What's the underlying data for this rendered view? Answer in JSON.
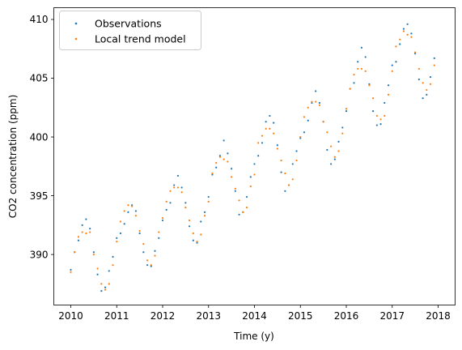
{
  "chart_data": {
    "type": "scatter",
    "xlabel": "Time (y)",
    "ylabel": "CO2 concentration (ppm)",
    "xlim": [
      2009.63,
      2018.37
    ],
    "ylim": [
      385.7,
      411.0
    ],
    "xticks": [
      2010,
      2011,
      2012,
      2013,
      2014,
      2015,
      2016,
      2017,
      2018
    ],
    "yticks": [
      390,
      395,
      400,
      405,
      410
    ],
    "grid": false,
    "legend_position": "top-left",
    "series": [
      {
        "name": "Observations",
        "color": "#1f77b4",
        "x": [
          2010.0,
          2010.083,
          2010.167,
          2010.25,
          2010.333,
          2010.417,
          2010.5,
          2010.583,
          2010.667,
          2010.75,
          2010.833,
          2010.917,
          2011.0,
          2011.083,
          2011.167,
          2011.25,
          2011.333,
          2011.417,
          2011.5,
          2011.583,
          2011.667,
          2011.75,
          2011.833,
          2011.917,
          2012.0,
          2012.083,
          2012.167,
          2012.25,
          2012.333,
          2012.417,
          2012.5,
          2012.583,
          2012.667,
          2012.75,
          2012.833,
          2012.917,
          2013.0,
          2013.083,
          2013.167,
          2013.25,
          2013.333,
          2013.417,
          2013.5,
          2013.583,
          2013.667,
          2013.75,
          2013.833,
          2013.917,
          2014.0,
          2014.083,
          2014.167,
          2014.25,
          2014.333,
          2014.417,
          2014.5,
          2014.583,
          2014.667,
          2014.75,
          2014.833,
          2014.917,
          2015.0,
          2015.083,
          2015.167,
          2015.25,
          2015.333,
          2015.417,
          2015.5,
          2015.583,
          2015.667,
          2015.75,
          2015.833,
          2015.917,
          2016.0,
          2016.083,
          2016.167,
          2016.25,
          2016.333,
          2016.417,
          2016.5,
          2016.583,
          2016.667,
          2016.75,
          2016.833,
          2016.917,
          2017.0,
          2017.083,
          2017.167,
          2017.25,
          2017.333,
          2017.417,
          2017.5,
          2017.583,
          2017.667,
          2017.75,
          2017.833,
          2017.917
        ],
        "values": [
          388.7,
          390.2,
          391.2,
          392.5,
          393.0,
          392.2,
          390.2,
          388.3,
          386.9,
          387.2,
          388.6,
          389.8,
          391.4,
          391.8,
          392.6,
          393.6,
          394.2,
          393.7,
          391.8,
          390.2,
          389.1,
          389.0,
          390.3,
          391.4,
          392.9,
          393.8,
          394.4,
          395.9,
          396.7,
          395.7,
          394.4,
          392.4,
          391.2,
          391.0,
          392.8,
          393.6,
          394.9,
          396.8,
          397.4,
          398.4,
          399.7,
          398.6,
          397.3,
          395.4,
          393.4,
          393.6,
          394.9,
          396.6,
          397.7,
          398.4,
          399.5,
          401.3,
          401.8,
          401.2,
          399.3,
          397.0,
          395.4,
          395.9,
          397.7,
          398.8,
          399.9,
          400.4,
          401.4,
          402.9,
          403.9,
          402.9,
          401.3,
          398.9,
          397.7,
          398.1,
          399.6,
          400.8,
          402.2,
          404.1,
          404.6,
          406.4,
          407.6,
          406.8,
          404.5,
          402.2,
          401.0,
          401.1,
          402.9,
          404.4,
          406.1,
          406.4,
          407.9,
          409.2,
          409.6,
          408.8,
          407.1,
          404.9,
          403.3,
          403.6,
          405.1,
          406.7
        ]
      },
      {
        "name": "Local trend model",
        "color": "#ff7f0e",
        "x": [
          2010.0,
          2010.083,
          2010.167,
          2010.25,
          2010.333,
          2010.417,
          2010.5,
          2010.583,
          2010.667,
          2010.75,
          2010.833,
          2010.917,
          2011.0,
          2011.083,
          2011.167,
          2011.25,
          2011.333,
          2011.417,
          2011.5,
          2011.583,
          2011.667,
          2011.75,
          2011.833,
          2011.917,
          2012.0,
          2012.083,
          2012.167,
          2012.25,
          2012.333,
          2012.417,
          2012.5,
          2012.583,
          2012.667,
          2012.75,
          2012.833,
          2012.917,
          2013.0,
          2013.083,
          2013.167,
          2013.25,
          2013.333,
          2013.417,
          2013.5,
          2013.583,
          2013.667,
          2013.75,
          2013.833,
          2013.917,
          2014.0,
          2014.083,
          2014.167,
          2014.25,
          2014.333,
          2014.417,
          2014.5,
          2014.583,
          2014.667,
          2014.75,
          2014.833,
          2014.917,
          2015.0,
          2015.083,
          2015.167,
          2015.25,
          2015.333,
          2015.417,
          2015.5,
          2015.583,
          2015.667,
          2015.75,
          2015.833,
          2015.917,
          2016.0,
          2016.083,
          2016.167,
          2016.25,
          2016.333,
          2016.417,
          2016.5,
          2016.583,
          2016.667,
          2016.75,
          2016.833,
          2016.917,
          2017.0,
          2017.083,
          2017.167,
          2017.25,
          2017.333,
          2017.417,
          2017.5,
          2017.583,
          2017.667,
          2017.75,
          2017.833,
          2017.917
        ],
        "values": [
          388.5,
          390.2,
          391.5,
          391.9,
          391.8,
          391.9,
          390.0,
          388.8,
          387.5,
          387.0,
          387.5,
          389.1,
          391.1,
          392.8,
          393.7,
          394.2,
          394.1,
          393.3,
          392.0,
          390.9,
          389.5,
          389.1,
          389.9,
          391.9,
          393.1,
          394.5,
          395.4,
          395.7,
          395.7,
          395.3,
          394.0,
          392.9,
          391.8,
          391.1,
          391.7,
          393.3,
          394.5,
          396.9,
          397.8,
          398.3,
          398.1,
          397.9,
          396.6,
          395.6,
          394.6,
          393.6,
          394.0,
          395.8,
          396.8,
          399.5,
          400.1,
          400.7,
          400.7,
          400.3,
          399.0,
          398.0,
          396.9,
          395.9,
          396.4,
          398.0,
          400.0,
          401.7,
          402.5,
          403.0,
          403.0,
          402.7,
          401.3,
          400.4,
          399.2,
          398.3,
          398.8,
          400.3,
          402.4,
          404.1,
          405.3,
          405.8,
          405.8,
          405.6,
          404.4,
          403.3,
          401.8,
          401.5,
          401.8,
          403.6,
          405.6,
          407.7,
          408.3,
          409.0,
          408.7,
          408.5,
          407.2,
          405.8,
          404.6,
          404.0,
          404.5,
          406.1
        ]
      }
    ]
  }
}
